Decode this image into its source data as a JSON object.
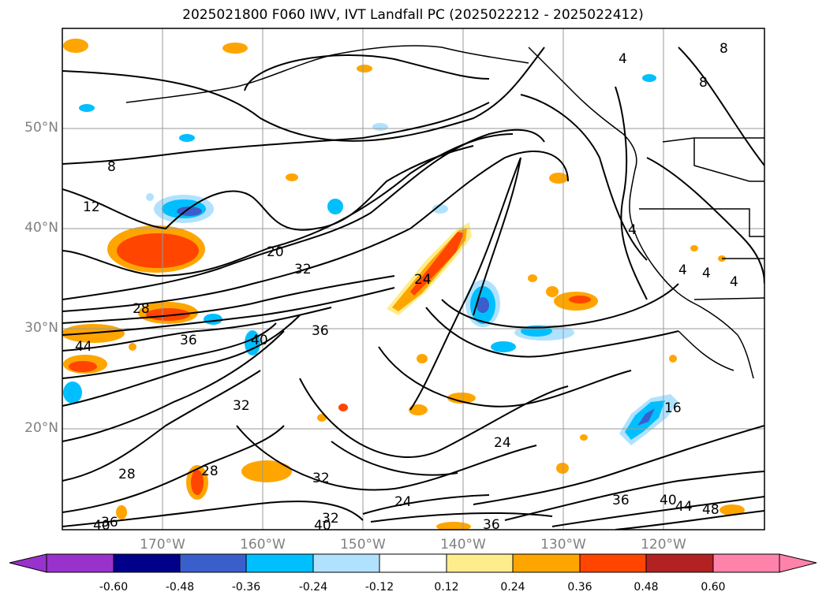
{
  "title": "2025021800 F060 IWV, IVT Landfall PC (2025022212 - 2025022412)",
  "map": {
    "lat_labels": [
      "50°N",
      "40°N",
      "30°N",
      "20°N"
    ],
    "lon_labels": [
      "170°W",
      "160°W",
      "150°W",
      "140°W",
      "130°W",
      "120°W"
    ],
    "gridlines": true,
    "contour_labels": [
      "4",
      "8",
      "8",
      "8",
      "12",
      "16",
      "20",
      "24",
      "24",
      "24",
      "28",
      "28",
      "28",
      "32",
      "32",
      "32",
      "32",
      "36",
      "36",
      "36",
      "36",
      "36",
      "40",
      "40",
      "40",
      "40",
      "44",
      "44",
      "48",
      "4",
      "4",
      "4",
      "4"
    ]
  },
  "colorbar": {
    "ticks": [
      "-0.60",
      "-0.48",
      "-0.36",
      "-0.24",
      "-0.12",
      "0.12",
      "0.24",
      "0.36",
      "0.48",
      "0.60"
    ],
    "colors": [
      "#9932cc",
      "#00008b",
      "#3a5fcd",
      "#00bfff",
      "#b0e2ff",
      "#ffffff",
      "#ffec8b",
      "#ffa500",
      "#ff4500",
      "#b22222",
      "#ff82ab"
    ]
  }
}
